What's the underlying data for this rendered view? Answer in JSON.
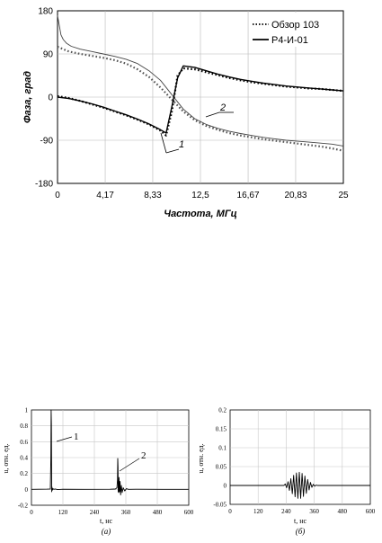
{
  "chart_data": [
    {
      "type": "line",
      "xlabel": "Частота, МГц",
      "ylabel": "Фаза, град",
      "xlim": [
        0,
        25
      ],
      "ylim": [
        -180,
        180
      ],
      "xticks": [
        "0",
        "4,17",
        "8,33",
        "12,5",
        "16,67",
        "20,83",
        "25"
      ],
      "xtick_values": [
        0,
        4.17,
        8.33,
        12.5,
        16.67,
        20.83,
        25
      ],
      "yticks": [
        "180",
        "90",
        "0",
        "-90",
        "-180"
      ],
      "ytick_values": [
        180,
        90,
        0,
        -90,
        -180
      ],
      "grid": true,
      "legend_position": "top-right",
      "series": [
        {
          "name": "Обзор 103",
          "style": "dotted",
          "curve": "2",
          "x": [
            0,
            0.5,
            1,
            2,
            3,
            4,
            5,
            6,
            7,
            8,
            9,
            10,
            11,
            12,
            13,
            14,
            15,
            16,
            17,
            18,
            19,
            20,
            21,
            22,
            23,
            24,
            25
          ],
          "y": [
            105,
            100,
            95,
            90,
            86,
            82,
            77,
            70,
            58,
            42,
            20,
            -5,
            -30,
            -48,
            -60,
            -68,
            -75,
            -80,
            -84,
            -88,
            -91,
            -94,
            -97,
            -100,
            -103,
            -107,
            -112
          ]
        },
        {
          "name": "Обзор 103",
          "style": "dotted",
          "curve": "1",
          "x": [
            0,
            1,
            2,
            3,
            4,
            5,
            6,
            7,
            8,
            9,
            9.5,
            10,
            10.5,
            11,
            12,
            13,
            14,
            15,
            16,
            17,
            18,
            19,
            20,
            21,
            22,
            23,
            24,
            25
          ],
          "y": [
            2,
            -2,
            -8,
            -15,
            -22,
            -30,
            -38,
            -47,
            -57,
            -70,
            -80,
            -30,
            45,
            60,
            58,
            52,
            46,
            40,
            35,
            31,
            28,
            25,
            22,
            20,
            18,
            17,
            15,
            13
          ]
        },
        {
          "name": "Р4-И-01",
          "style": "solid",
          "curve": "2",
          "x": [
            0,
            0.15,
            0.3,
            0.5,
            0.8,
            1.2,
            2,
            3,
            4,
            5,
            6,
            7,
            8,
            9,
            10,
            11,
            12,
            13,
            14,
            15,
            16,
            17,
            18,
            19,
            20,
            21,
            22,
            23,
            24,
            25
          ],
          "y": [
            170,
            150,
            130,
            120,
            112,
            106,
            100,
            95,
            90,
            85,
            79,
            70,
            55,
            35,
            5,
            -25,
            -45,
            -57,
            -65,
            -71,
            -76,
            -80,
            -84,
            -87,
            -90,
            -92,
            -94,
            -96,
            -98,
            -102
          ]
        },
        {
          "name": "Р4-И-01",
          "style": "solid",
          "curve": "1",
          "x": [
            0,
            1,
            2,
            3,
            4,
            5,
            6,
            7,
            8,
            9,
            9.5,
            10,
            10.5,
            11,
            12,
            13,
            14,
            15,
            16,
            17,
            18,
            19,
            20,
            21,
            22,
            23,
            24,
            25
          ],
          "y": [
            0,
            -3,
            -8,
            -14,
            -21,
            -29,
            -37,
            -46,
            -56,
            -68,
            -75,
            -20,
            40,
            65,
            62,
            55,
            48,
            42,
            37,
            33,
            29,
            26,
            23,
            21,
            19,
            17,
            15,
            13
          ]
        }
      ],
      "annotations": [
        "1",
        "2"
      ]
    },
    {
      "type": "line",
      "caption": "(а)",
      "xlabel": "t, нс",
      "ylabel": "u, отн. ед.",
      "xlim": [
        0,
        600
      ],
      "ylim": [
        -0.2,
        1
      ],
      "xticks": [
        "0",
        "120",
        "240",
        "360",
        "480",
        "600"
      ],
      "xtick_values": [
        0,
        120,
        240,
        360,
        480,
        600
      ],
      "yticks": [
        "1",
        "0.8",
        "0.6",
        "0.4",
        "0.2",
        "0",
        "-0.2"
      ],
      "ytick_values": [
        1,
        0.8,
        0.6,
        0.4,
        0.2,
        0,
        -0.2
      ],
      "grid": true,
      "series": [
        {
          "x": [
            0,
            60,
            72,
            74,
            75,
            76,
            77,
            78,
            80,
            82,
            85,
            90,
            100,
            120,
            200,
            300,
            320,
            326,
            328,
            329,
            330,
            331,
            332,
            333,
            334,
            336,
            338,
            340,
            343,
            346,
            350,
            356,
            362,
            370,
            400,
            500,
            600
          ],
          "y": [
            0,
            0.003,
            0.005,
            0.4,
            1.0,
            0.82,
            -0.03,
            0.03,
            -0.01,
            0.01,
            0,
            0.005,
            -0.003,
            0.002,
            0,
            0.002,
            0.004,
            0.02,
            0.12,
            0.39,
            0.28,
            -0.03,
            0.06,
            -0.04,
            0.15,
            -0.03,
            0.1,
            -0.07,
            0.05,
            -0.04,
            0.02,
            -0.02,
            0.01,
            0,
            0.002,
            0,
            0
          ]
        }
      ],
      "annotations": [
        "1",
        "2"
      ]
    },
    {
      "type": "line",
      "caption": "(б)",
      "xlabel": "t, нс",
      "ylabel": "u, отн. ед.",
      "xlim": [
        0,
        600
      ],
      "ylim": [
        -0.05,
        0.2
      ],
      "xticks": [
        "0",
        "120",
        "240",
        "360",
        "480",
        "600"
      ],
      "xtick_values": [
        0,
        120,
        240,
        360,
        480,
        600
      ],
      "yticks": [
        "0.2",
        "0.15",
        "0.1",
        "0.05",
        "0",
        "-0.05"
      ],
      "ytick_values": [
        0.2,
        0.15,
        0.1,
        0.05,
        0,
        -0.05
      ],
      "grid": true,
      "series": [
        {
          "x": [
            0,
            230,
            236,
            242,
            248,
            254,
            260,
            266,
            272,
            278,
            284,
            290,
            296,
            302,
            308,
            314,
            320,
            326,
            332,
            338,
            344,
            350,
            356,
            362,
            368,
            374,
            600
          ],
          "y": [
            0,
            0,
            0.004,
            -0.006,
            0.01,
            -0.013,
            0.018,
            -0.022,
            0.027,
            -0.03,
            0.033,
            -0.034,
            0.035,
            -0.034,
            0.032,
            -0.029,
            0.025,
            -0.021,
            0.016,
            -0.012,
            0.008,
            -0.005,
            0.003,
            -0.002,
            0.001,
            0,
            0
          ]
        }
      ]
    }
  ]
}
